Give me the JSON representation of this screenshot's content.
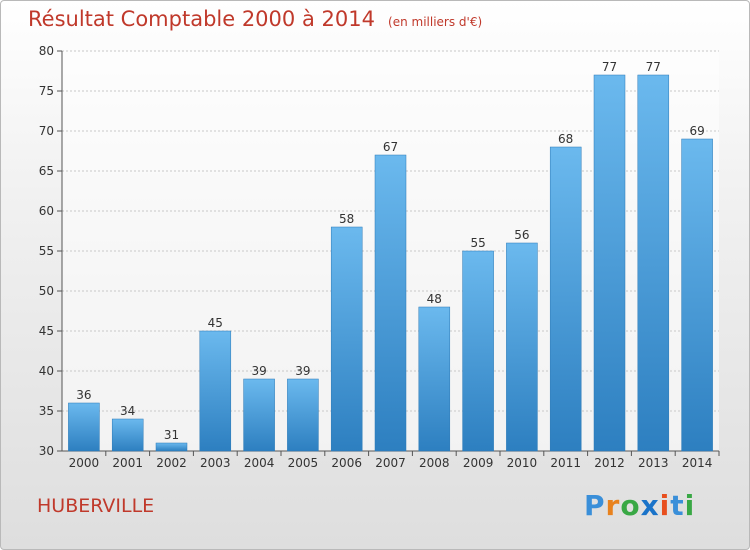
{
  "title": "Résultat Comptable 2000 à 2014",
  "subtitle": "(en milliers d'€)",
  "commune": "HUBERVILLE",
  "logo": {
    "text": "Proxiti",
    "letters": [
      "P",
      "r",
      "o",
      "x",
      "i",
      "t",
      "i"
    ],
    "colors": [
      "#3a8fd9",
      "#e8821e",
      "#39a845",
      "#1a73c9",
      "#e84f1e",
      "#3a8fd9",
      "#39a845"
    ]
  },
  "colors": {
    "bar_light": "#6bb9ee",
    "bar_dark": "#2d7fc0",
    "title": "#c0392b",
    "grid": "#c8c8c8"
  },
  "chart_data": {
    "type": "bar",
    "title": "Résultat Comptable 2000 à 2014",
    "subtitle": "(en milliers d'€)",
    "categories": [
      "2000",
      "2001",
      "2002",
      "2003",
      "2004",
      "2005",
      "2006",
      "2007",
      "2008",
      "2009",
      "2010",
      "2011",
      "2012",
      "2013",
      "2014"
    ],
    "values": [
      36,
      34,
      31,
      45,
      39,
      39,
      58,
      67,
      48,
      55,
      56,
      68,
      77,
      77,
      69
    ],
    "ylim": [
      30,
      80
    ],
    "yticks": [
      30,
      35,
      40,
      45,
      50,
      55,
      60,
      65,
      70,
      75,
      80
    ],
    "grid": true,
    "data_labels": true
  }
}
